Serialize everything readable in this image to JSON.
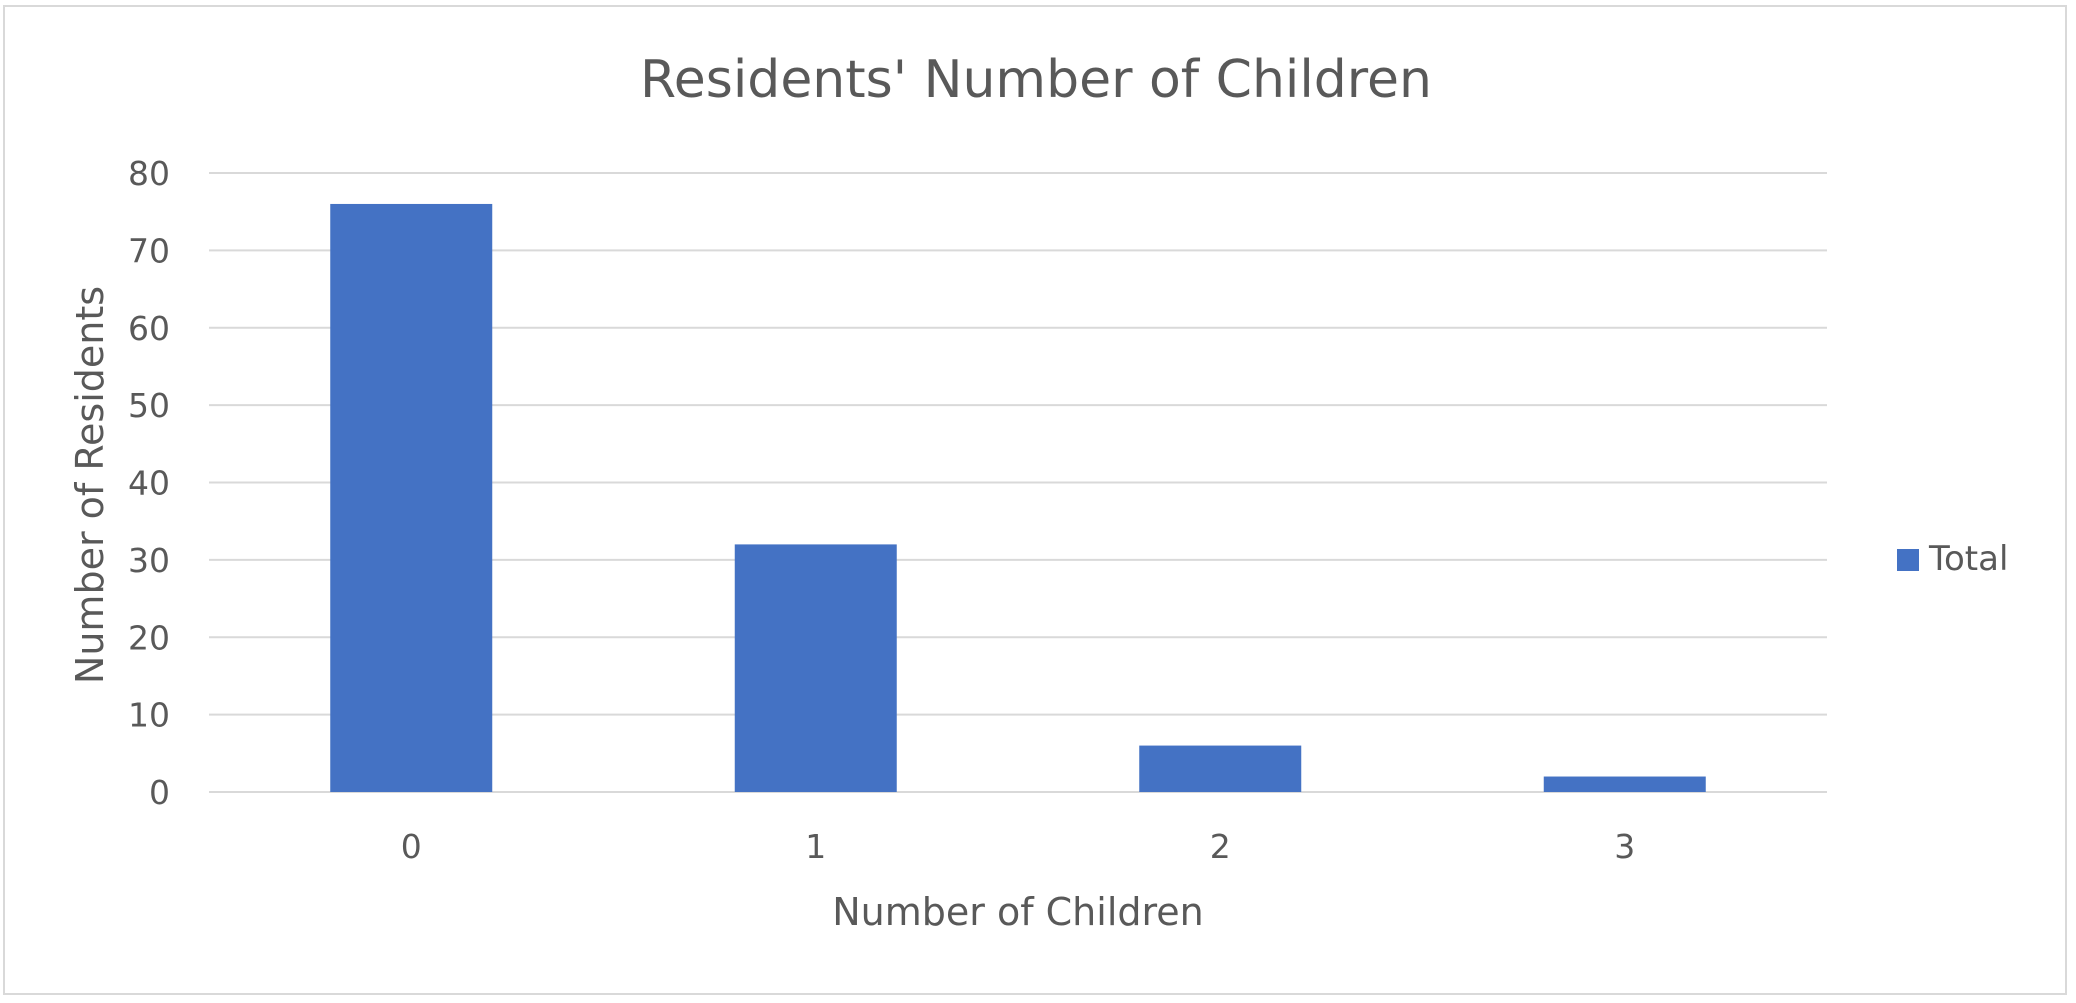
{
  "chart_data": {
    "type": "bar",
    "title": "Residents' Number of Children",
    "xlabel": "Number of Children",
    "ylabel": "Number of Residents",
    "categories": [
      "0",
      "1",
      "2",
      "3"
    ],
    "series": [
      {
        "name": "Total",
        "values": [
          76,
          32,
          6,
          2
        ],
        "color": "#4472c4"
      }
    ],
    "ylim": [
      0,
      80
    ],
    "yticks": [
      "0",
      "10",
      "20",
      "30",
      "40",
      "50",
      "60",
      "70",
      "80"
    ],
    "grid": true,
    "legend_position": "right"
  }
}
